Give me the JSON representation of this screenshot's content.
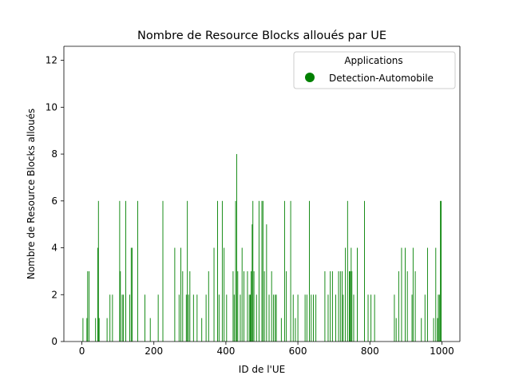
{
  "chart_data": {
    "type": "bar",
    "title": "Nombre de Resource Blocks alloués par UE",
    "xlabel": "ID de l'UE",
    "ylabel": "Nombre de Resource Blocks alloués",
    "xlim": [
      -50,
      1050
    ],
    "ylim": [
      0,
      12.6
    ],
    "xticks": [
      0,
      200,
      400,
      600,
      800,
      1000
    ],
    "yticks": [
      0,
      2,
      4,
      6,
      8,
      10,
      12
    ],
    "grid": false,
    "bar_color": "#008000",
    "legend": {
      "title": "Applications",
      "placement": "upper-right",
      "entries": [
        {
          "name": "Detection-Automobile",
          "color": "#008000",
          "marker": "circle"
        }
      ]
    },
    "series": [
      {
        "name": "Detection-Automobile",
        "x": [
          3,
          14,
          16,
          20,
          38,
          44,
          46,
          48,
          70,
          78,
          85,
          105,
          107,
          112,
          115,
          122,
          133,
          137,
          140,
          155,
          175,
          190,
          212,
          225,
          258,
          270,
          275,
          280,
          290,
          293,
          296,
          300,
          310,
          320,
          333,
          345,
          352,
          367,
          377,
          381,
          390,
          395,
          402,
          420,
          423,
          427,
          430,
          433,
          440,
          445,
          450,
          460,
          465,
          468,
          470,
          473,
          475,
          478,
          485,
          492,
          500,
          503,
          507,
          513,
          520,
          527,
          532,
          537,
          540,
          554,
          563,
          568,
          580,
          587,
          593,
          600,
          620,
          625,
          632,
          637,
          643,
          650,
          675,
          684,
          690,
          696,
          705,
          713,
          718,
          723,
          726,
          732,
          738,
          743,
          745,
          748,
          750,
          755,
          765,
          785,
          795,
          803,
          813,
          868,
          873,
          880,
          888,
          898,
          904,
          917,
          920,
          926,
          943,
          953,
          960,
          977,
          983,
          988,
          990,
          993,
          996,
          998
        ],
        "values": [
          1,
          1,
          3,
          3,
          1,
          4,
          6,
          1,
          1,
          2,
          2,
          6,
          3,
          2,
          2,
          6,
          2,
          4,
          4,
          6,
          2,
          1,
          2,
          6,
          4,
          2,
          4,
          3,
          2,
          6,
          2,
          3,
          2,
          2,
          1,
          2,
          3,
          4,
          6,
          2,
          6,
          4,
          2,
          3,
          2,
          6,
          8,
          3,
          2,
          4,
          3,
          3,
          2,
          2,
          3,
          5,
          6,
          3,
          2,
          6,
          6,
          6,
          3,
          5,
          2,
          3,
          2,
          2,
          2,
          1,
          6,
          3,
          6,
          2,
          1,
          2,
          2,
          2,
          6,
          2,
          2,
          2,
          3,
          2,
          3,
          3,
          2,
          3,
          3,
          3,
          2,
          4,
          6,
          3,
          3,
          4,
          3,
          2,
          4,
          6,
          2,
          2,
          2,
          2,
          1,
          3,
          4,
          4,
          3,
          2,
          4,
          3,
          1,
          2,
          4,
          1,
          4,
          1,
          2,
          2,
          6,
          6
        ]
      }
    ]
  }
}
